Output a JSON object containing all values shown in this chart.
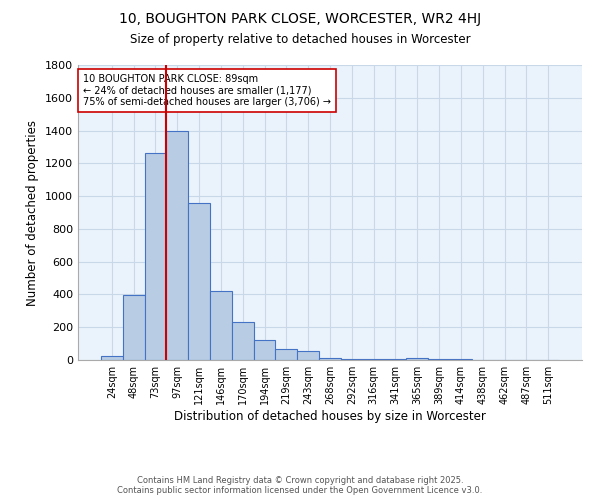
{
  "title": "10, BOUGHTON PARK CLOSE, WORCESTER, WR2 4HJ",
  "subtitle": "Size of property relative to detached houses in Worcester",
  "xlabel": "Distribution of detached houses by size in Worcester",
  "ylabel": "Number of detached properties",
  "bar_labels": [
    "24sqm",
    "48sqm",
    "73sqm",
    "97sqm",
    "121sqm",
    "146sqm",
    "170sqm",
    "194sqm",
    "219sqm",
    "243sqm",
    "268sqm",
    "292sqm",
    "316sqm",
    "341sqm",
    "365sqm",
    "389sqm",
    "414sqm",
    "438sqm",
    "462sqm",
    "487sqm",
    "511sqm"
  ],
  "bar_values": [
    25,
    395,
    1265,
    1400,
    960,
    420,
    230,
    125,
    65,
    55,
    15,
    5,
    5,
    5,
    10,
    5,
    5,
    0,
    0,
    0,
    0
  ],
  "bar_color": "#b8cce4",
  "bar_edge_color": "#4472c4",
  "grid_color": "#c8d8e8",
  "bg_color": "#eaf3fb",
  "vline_color": "#cc0000",
  "annotation_text": "10 BOUGHTON PARK CLOSE: 89sqm\n← 24% of detached houses are smaller (1,177)\n75% of semi-detached houses are larger (3,706) →",
  "annotation_box_color": "#ffffff",
  "annotation_box_edge": "#cc0000",
  "ylim": [
    0,
    1800
  ],
  "yticks": [
    0,
    200,
    400,
    600,
    800,
    1000,
    1200,
    1400,
    1600,
    1800
  ],
  "footer_line1": "Contains HM Land Registry data © Crown copyright and database right 2025.",
  "footer_line2": "Contains public sector information licensed under the Open Government Licence v3.0."
}
